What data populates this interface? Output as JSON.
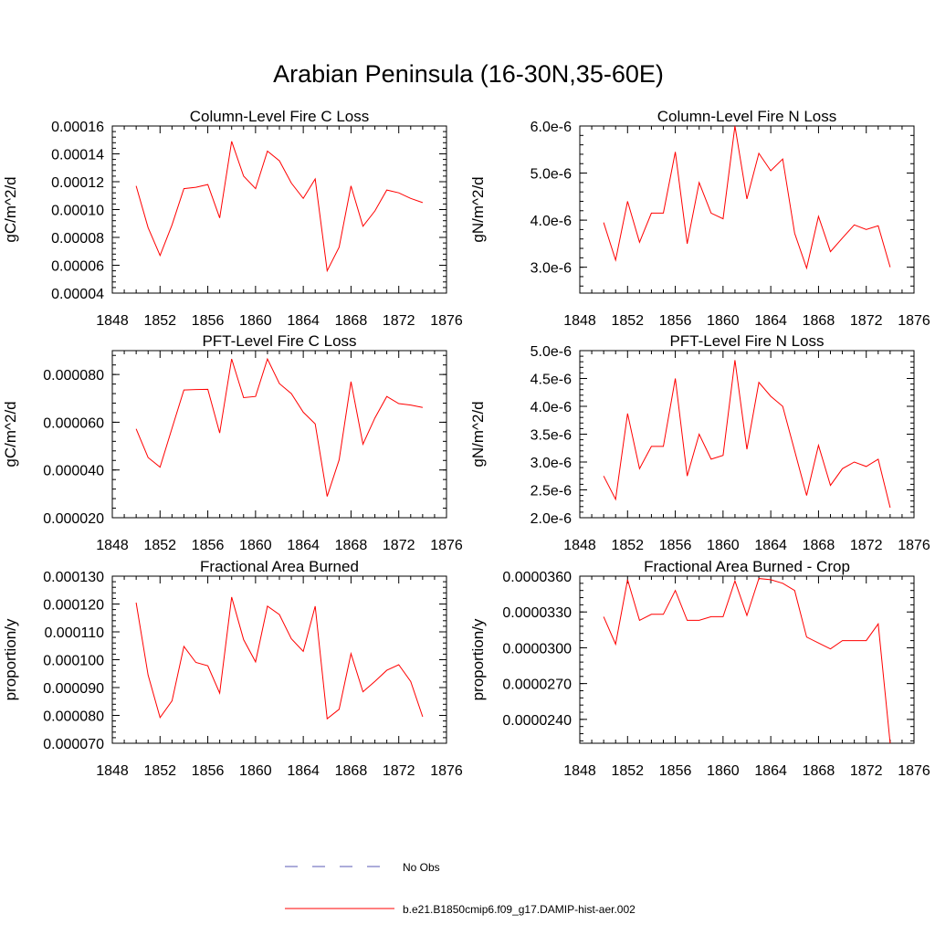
{
  "title": "Arabian Peninsula (16-30N,35-60E)",
  "legend": {
    "obs_label": "No Obs",
    "model_label": "b.e21.B1850cmip6.f09_g17.DAMIP-hist-aer.002"
  },
  "colors": {
    "model": "#ff0000",
    "obs": "#5a5ab4",
    "axis": "#000000"
  },
  "chart_data": [
    {
      "type": "line",
      "title": "Column-Level Fire C Loss",
      "ylabel": "gC/m^2/d",
      "xlim": [
        1848,
        1876
      ],
      "ylim": [
        4e-05,
        0.00016
      ],
      "x_ticks": [
        1848,
        1852,
        1856,
        1860,
        1864,
        1868,
        1872,
        1876
      ],
      "x_tick_labels": [
        "1848",
        "1852",
        "1856",
        "1860",
        "1864",
        "1868",
        "1872",
        "1876"
      ],
      "y_ticks": [
        4e-05,
        6e-05,
        8e-05,
        0.0001,
        0.00012,
        0.00014,
        0.00016
      ],
      "y_tick_labels": [
        "0.00004",
        "0.00006",
        "0.00008",
        "0.00010",
        "0.00012",
        "0.00014",
        "0.00016"
      ],
      "x": [
        1850,
        1851,
        1852,
        1853,
        1854,
        1855,
        1856,
        1857,
        1858,
        1859,
        1860,
        1861,
        1862,
        1863,
        1864,
        1865,
        1866,
        1867,
        1868,
        1869,
        1870,
        1871,
        1872,
        1873,
        1874
      ],
      "series": [
        {
          "name": "b.e21.B1850cmip6.f09_g17.DAMIP-hist-aer.002",
          "values": [
            0.000117,
            8.7e-05,
            6.7e-05,
            8.9e-05,
            0.000115,
            0.000116,
            0.000118,
            9.4e-05,
            0.000149,
            0.000124,
            0.000115,
            0.000142,
            0.000135,
            0.000119,
            0.000108,
            0.000122,
            5.6e-05,
            7.3e-05,
            0.000117,
            8.8e-05,
            9.9e-05,
            0.000114,
            0.000112,
            0.000108,
            0.000105
          ]
        }
      ]
    },
    {
      "type": "line",
      "title": "Column-Level Fire N Loss",
      "ylabel": "gN/m^2/d",
      "xlim": [
        1848,
        1876
      ],
      "ylim": [
        2.45e-06,
        6e-06
      ],
      "x_ticks": [
        1848,
        1852,
        1856,
        1860,
        1864,
        1868,
        1872,
        1876
      ],
      "x_tick_labels": [
        "1848",
        "1852",
        "1856",
        "1860",
        "1864",
        "1868",
        "1872",
        "1876"
      ],
      "y_ticks": [
        3e-06,
        4e-06,
        5e-06,
        6e-06
      ],
      "y_tick_labels": [
        "3.0e-6",
        "4.0e-6",
        "5.0e-6",
        "6.0e-6"
      ],
      "x": [
        1850,
        1851,
        1852,
        1853,
        1854,
        1855,
        1856,
        1857,
        1858,
        1859,
        1860,
        1861,
        1862,
        1863,
        1864,
        1865,
        1866,
        1867,
        1868,
        1869,
        1870,
        1871,
        1872,
        1873,
        1874
      ],
      "series": [
        {
          "name": "b.e21.B1850cmip6.f09_g17.DAMIP-hist-aer.002",
          "values": [
            3.95e-06,
            3.15e-06,
            4.4e-06,
            3.53e-06,
            4.15e-06,
            4.15e-06,
            5.45e-06,
            3.5e-06,
            4.8e-06,
            4.15e-06,
            4.03e-06,
            6e-06,
            4.45e-06,
            5.42e-06,
            5.05e-06,
            5.3e-06,
            3.72e-06,
            2.98e-06,
            4.08e-06,
            3.33e-06,
            3.62e-06,
            3.9e-06,
            3.8e-06,
            3.88e-06,
            3e-06
          ]
        }
      ]
    },
    {
      "type": "line",
      "title": "PFT-Level Fire C Loss",
      "ylabel": "gC/m^2/d",
      "xlim": [
        1848,
        1876
      ],
      "ylim": [
        2e-05,
        9e-05
      ],
      "x_ticks": [
        1848,
        1852,
        1856,
        1860,
        1864,
        1868,
        1872,
        1876
      ],
      "x_tick_labels": [
        "1848",
        "1852",
        "1856",
        "1860",
        "1864",
        "1868",
        "1872",
        "1876"
      ],
      "y_ticks": [
        2e-05,
        4e-05,
        6e-05,
        8e-05
      ],
      "y_tick_labels": [
        "0.000020",
        "0.000040",
        "0.000060",
        "0.000080"
      ],
      "x": [
        1850,
        1851,
        1852,
        1853,
        1854,
        1855,
        1856,
        1857,
        1858,
        1859,
        1860,
        1861,
        1862,
        1863,
        1864,
        1865,
        1866,
        1867,
        1868,
        1869,
        1870,
        1871,
        1872,
        1873,
        1874
      ],
      "series": [
        {
          "name": "b.e21.B1850cmip6.f09_g17.DAMIP-hist-aer.002",
          "values": [
            5.72e-05,
            4.52e-05,
            4.12e-05,
            5.75e-05,
            7.35e-05,
            7.37e-05,
            7.38e-05,
            5.55e-05,
            8.65e-05,
            7.03e-05,
            7.08e-05,
            8.65e-05,
            7.62e-05,
            7.2e-05,
            6.42e-05,
            5.93e-05,
            2.89e-05,
            4.42e-05,
            7.7e-05,
            5.08e-05,
            6.18e-05,
            7.08e-05,
            6.78e-05,
            6.72e-05,
            6.62e-05
          ]
        }
      ]
    },
    {
      "type": "line",
      "title": "PFT-Level Fire N Loss",
      "ylabel": "gN/m^2/d",
      "xlim": [
        1848,
        1876
      ],
      "ylim": [
        2e-06,
        5e-06
      ],
      "x_ticks": [
        1848,
        1852,
        1856,
        1860,
        1864,
        1868,
        1872,
        1876
      ],
      "x_tick_labels": [
        "1848",
        "1852",
        "1856",
        "1860",
        "1864",
        "1868",
        "1872",
        "1876"
      ],
      "y_ticks": [
        2e-06,
        2.5e-06,
        3e-06,
        3.5e-06,
        4e-06,
        4.5e-06,
        5e-06
      ],
      "y_tick_labels": [
        "2.0e-6",
        "2.5e-6",
        "3.0e-6",
        "3.5e-6",
        "4.0e-6",
        "4.5e-6",
        "5.0e-6"
      ],
      "x": [
        1850,
        1851,
        1852,
        1853,
        1854,
        1855,
        1856,
        1857,
        1858,
        1859,
        1860,
        1861,
        1862,
        1863,
        1864,
        1865,
        1866,
        1867,
        1868,
        1869,
        1870,
        1871,
        1872,
        1873,
        1874
      ],
      "series": [
        {
          "name": "b.e21.B1850cmip6.f09_g17.DAMIP-hist-aer.002",
          "values": [
            2.75e-06,
            2.33e-06,
            3.87e-06,
            2.88e-06,
            3.28e-06,
            3.28e-06,
            4.5e-06,
            2.75e-06,
            3.5e-06,
            3.05e-06,
            3.12e-06,
            4.83e-06,
            3.23e-06,
            4.43e-06,
            4.18e-06,
            4e-06,
            3.2e-06,
            2.4e-06,
            3.3e-06,
            2.58e-06,
            2.88e-06,
            3e-06,
            2.92e-06,
            3.05e-06,
            2.18e-06
          ]
        }
      ]
    },
    {
      "type": "line",
      "title": "Fractional Area Burned",
      "ylabel": "proportion/y",
      "xlim": [
        1848,
        1876
      ],
      "ylim": [
        7e-05,
        0.00013
      ],
      "x_ticks": [
        1848,
        1852,
        1856,
        1860,
        1864,
        1868,
        1872,
        1876
      ],
      "x_tick_labels": [
        "1848",
        "1852",
        "1856",
        "1860",
        "1864",
        "1868",
        "1872",
        "1876"
      ],
      "y_ticks": [
        7e-05,
        8e-05,
        9e-05,
        0.0001,
        0.00011,
        0.00012,
        0.00013
      ],
      "y_tick_labels": [
        "0.000070",
        "0.000080",
        "0.000090",
        "0.000100",
        "0.000110",
        "0.000120",
        "0.000130"
      ],
      "x": [
        1850,
        1851,
        1852,
        1853,
        1854,
        1855,
        1856,
        1857,
        1858,
        1859,
        1860,
        1861,
        1862,
        1863,
        1864,
        1865,
        1866,
        1867,
        1868,
        1869,
        1870,
        1871,
        1872,
        1873,
        1874
      ],
      "series": [
        {
          "name": "b.e21.B1850cmip6.f09_g17.DAMIP-hist-aer.002",
          "values": [
            0.0001205,
            9.45e-05,
            7.92e-05,
            8.52e-05,
            0.0001048,
            9.9e-05,
            9.78e-05,
            8.8e-05,
            0.0001225,
            0.0001072,
            9.92e-05,
            0.0001192,
            0.0001162,
            0.0001075,
            0.000103,
            0.0001192,
            7.88e-05,
            8.22e-05,
            0.0001022,
            8.85e-05,
            9.22e-05,
            9.62e-05,
            9.82e-05,
            9.22e-05,
            7.95e-05
          ]
        }
      ]
    },
    {
      "type": "line",
      "title": "Fractional Area Burned - Crop",
      "ylabel": "proportion/y",
      "xlim": [
        1848,
        1876
      ],
      "ylim": [
        2.2e-05,
        3.6e-05
      ],
      "x_ticks": [
        1848,
        1852,
        1856,
        1860,
        1864,
        1868,
        1872,
        1876
      ],
      "x_tick_labels": [
        "1848",
        "1852",
        "1856",
        "1860",
        "1864",
        "1868",
        "1872",
        "1876"
      ],
      "y_ticks": [
        2.4e-05,
        2.7e-05,
        3e-05,
        3.3e-05,
        3.6e-05
      ],
      "y_tick_labels": [
        "0.0000240",
        "0.0000270",
        "0.0000300",
        "0.0000330",
        "0.0000360"
      ],
      "x": [
        1850,
        1851,
        1852,
        1853,
        1854,
        1855,
        1856,
        1857,
        1858,
        1859,
        1860,
        1861,
        1862,
        1863,
        1864,
        1865,
        1866,
        1867,
        1868,
        1869,
        1870,
        1871,
        1872,
        1873,
        1874
      ],
      "series": [
        {
          "name": "b.e21.B1850cmip6.f09_g17.DAMIP-hist-aer.002",
          "values": [
            3.26e-05,
            3.03e-05,
            3.57e-05,
            3.23e-05,
            3.28e-05,
            3.28e-05,
            3.48e-05,
            3.23e-05,
            3.23e-05,
            3.26e-05,
            3.26e-05,
            3.56e-05,
            3.27e-05,
            3.58e-05,
            3.57e-05,
            3.54e-05,
            3.48e-05,
            3.09e-05,
            3.04e-05,
            2.99e-05,
            3.06e-05,
            3.06e-05,
            3.06e-05,
            3.2e-05,
            2.2e-05
          ]
        }
      ]
    }
  ]
}
